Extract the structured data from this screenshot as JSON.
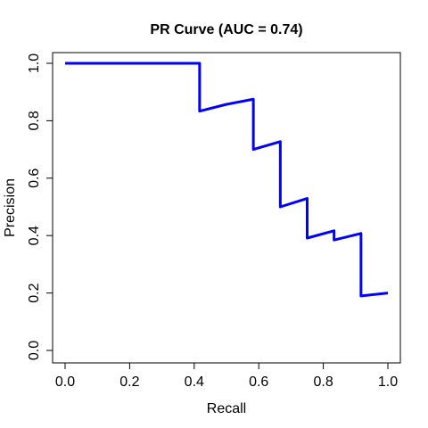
{
  "chart_data": {
    "type": "line",
    "title": "PR Curve (AUC = 0.74)",
    "xlabel": "Recall",
    "ylabel": "Precision",
    "xlim": [
      0,
      1
    ],
    "ylim": [
      0,
      1
    ],
    "xticks": [
      "0.0",
      "0.2",
      "0.4",
      "0.6",
      "0.8",
      "1.0"
    ],
    "yticks": [
      "0.0",
      "0.2",
      "0.4",
      "0.6",
      "0.8",
      "1.0"
    ],
    "grid": false,
    "series": [
      {
        "color": "#0000ff",
        "x": [
          0.0,
          0.0833,
          0.1667,
          0.25,
          0.3333,
          0.4167,
          0.4167,
          0.5,
          0.5833,
          0.5833,
          0.6667,
          0.6667,
          0.75,
          0.75,
          0.8333,
          0.8333,
          0.9167,
          0.9167,
          1.0
        ],
        "y": [
          1.0,
          1.0,
          1.0,
          1.0,
          1.0,
          1.0,
          0.8333,
          0.8571,
          0.875,
          0.7,
          0.7273,
          0.5,
          0.5294,
          0.3913,
          0.4167,
          0.3846,
          0.4074,
          0.1897,
          0.2
        ]
      }
    ]
  }
}
